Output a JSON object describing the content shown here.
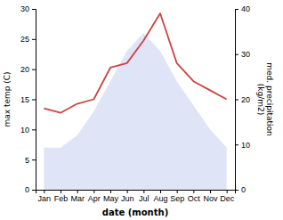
{
  "chart_data": {
    "type": "area",
    "xlabel": "date (month)",
    "ylabel": "max temp (C)",
    "y2label": "med. precipitation\n(kg/m2)",
    "categories": [
      "Jan",
      "Feb",
      "Mar",
      "Apr",
      "May",
      "Jun",
      "Jul",
      "Aug",
      "Sep",
      "Oct",
      "Nov",
      "Dec"
    ],
    "series": [
      {
        "type": "area",
        "color": "#c5cef0",
        "values": [
          7,
          7,
          9,
          13,
          18,
          23,
          26,
          23,
          18,
          14,
          10,
          7
        ]
      },
      {
        "type": "line",
        "axis": "y2",
        "color": "#cc4444",
        "values": [
          18,
          17,
          19,
          20,
          27,
          28,
          33,
          39,
          28,
          24,
          22,
          20
        ]
      }
    ],
    "ylim": [
      0,
      30
    ],
    "yticks": [
      0,
      5,
      10,
      15,
      20,
      25,
      30
    ],
    "y2lim": [
      0,
      40
    ],
    "y2ticks": [
      0,
      10,
      20,
      30,
      40
    ]
  }
}
